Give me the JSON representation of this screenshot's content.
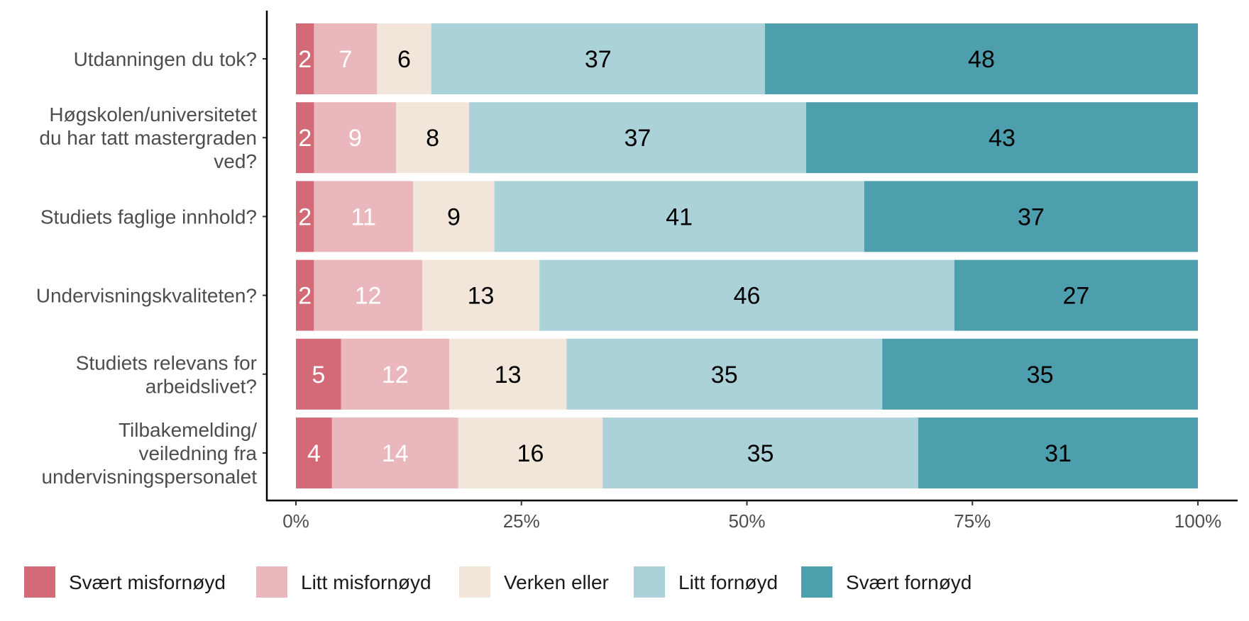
{
  "chart_data": {
    "type": "bar",
    "orientation": "horizontal",
    "stacked": true,
    "categories": [
      [
        "Utdanningen du tok?"
      ],
      [
        "Høgskolen/universitetet",
        "du har tatt mastergraden",
        "ved?"
      ],
      [
        "Studiets faglige innhold?"
      ],
      [
        "Undervisningskvaliteten?"
      ],
      [
        "Studiets relevans for",
        "arbeidslivet?"
      ],
      [
        "Tilbakemelding/",
        "veiledning fra",
        "undervisningspersonalet"
      ]
    ],
    "series": [
      {
        "name": "Svært misfornøyd",
        "color": "#d46a77",
        "label_color": "#ffffff",
        "values": [
          2,
          2,
          2,
          2,
          5,
          4
        ]
      },
      {
        "name": "Litt misfornøyd",
        "color": "#e9b7bc",
        "label_color": "#ffffff",
        "values": [
          7,
          9,
          11,
          12,
          12,
          14
        ]
      },
      {
        "name": "Verken eller",
        "color": "#f1e6d9",
        "label_color": "#000000",
        "values": [
          6,
          8,
          9,
          13,
          13,
          16
        ]
      },
      {
        "name": "Litt fornøyd",
        "color": "#acd2d9",
        "label_color": "#000000",
        "values": [
          37,
          37,
          41,
          46,
          35,
          35
        ]
      },
      {
        "name": "Svært fornøyd",
        "color": "#4e9fae",
        "label_color": "#000000",
        "values": [
          48,
          43,
          37,
          27,
          35,
          31
        ]
      }
    ],
    "x_ticks": [
      "0%",
      "25%",
      "50%",
      "75%",
      "100%"
    ],
    "xlim": [
      0,
      100
    ],
    "xlabel": "",
    "ylabel": "",
    "legend_position": "bottom",
    "grid": false
  }
}
